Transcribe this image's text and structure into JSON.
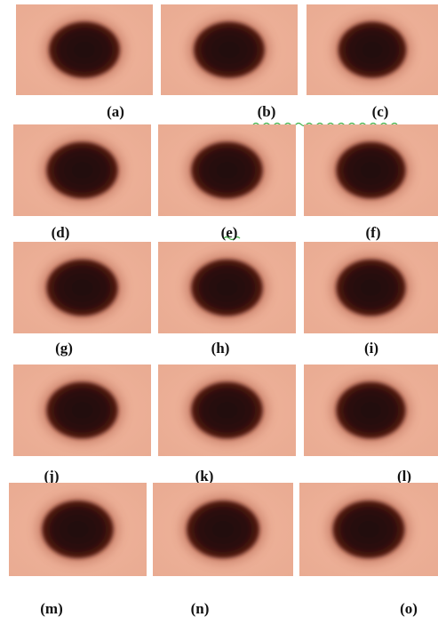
{
  "figure": {
    "labels": [
      "(a)",
      "(b)",
      "(c)",
      "(d)",
      "(e)",
      "(f)",
      "(g)",
      "(h)",
      "(i)",
      "(j)",
      "(k)",
      "(l)",
      "(m)",
      "(n)",
      "(o)"
    ]
  }
}
